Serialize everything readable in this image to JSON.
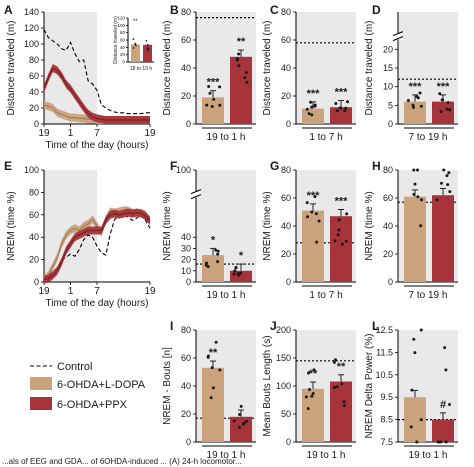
{
  "colors": {
    "ldopa": "#caa27c",
    "ldopa_dark": "#a47c58",
    "ppx": "#a6343a",
    "ppx_dark": "#7a1f25",
    "shade": "#e9e9e9",
    "control": "#000000"
  },
  "legend": {
    "control": "Control",
    "ldopa": "6-OHDA+L-DOPA",
    "ppx": "6-OHDA+PPX"
  },
  "caption_fragment": "...als of EEG and GDA... of 6OHDA-induced ... (A) 24-h locomotor...",
  "chart_data": [
    {
      "panel": "A",
      "type": "line",
      "ylabel": "Distance traveled (m)",
      "xlabel": "Time of the day (hours)",
      "ylim": [
        0,
        140
      ],
      "yticks": [
        0,
        20,
        40,
        60,
        80,
        100,
        120,
        140
      ],
      "xticks": [
        "19",
        "1",
        "7",
        "19"
      ],
      "shaded": "dark phase 19-7",
      "x": [
        19,
        20,
        21,
        22,
        23,
        24,
        25,
        26,
        27,
        28,
        29,
        30,
        31,
        32,
        33,
        34,
        35,
        36,
        37,
        38,
        39,
        40,
        41,
        42,
        43
      ],
      "series": [
        {
          "name": "Control",
          "values": [
            118,
            108,
            104,
            100,
            94,
            92,
            102,
            88,
            78,
            80,
            54,
            50,
            42,
            24,
            20,
            17,
            15,
            14,
            14,
            13,
            13,
            13,
            13,
            14,
            14
          ]
        },
        {
          "name": "6-OHDA+L-DOPA",
          "values": [
            24,
            22,
            20,
            14,
            12,
            10,
            8,
            8,
            7,
            7,
            6,
            6,
            5,
            5,
            5,
            5,
            5,
            5,
            5,
            5,
            5,
            5,
            5,
            5,
            5
          ]
        },
        {
          "name": "6-OHDA+PPX",
          "values": [
            44,
            58,
            70,
            67,
            60,
            50,
            44,
            36,
            28,
            20,
            13,
            9,
            7,
            6,
            5,
            5,
            5,
            5,
            5,
            5,
            5,
            5,
            5,
            5,
            5
          ]
        }
      ],
      "inset": {
        "ylabel": "Distance traveled (m)",
        "xlabel": "18 to 19 h",
        "ylim": [
          0,
          120
        ],
        "yticks": [
          0,
          20,
          40,
          60,
          80,
          100,
          120
        ],
        "values": {
          "6-OHDA+L-DOPA": 48,
          "6-OHDA+PPX": 47
        },
        "annotation": "**"
      }
    },
    {
      "panel": "B",
      "type": "bar",
      "ylabel": "Distance traveled (m)",
      "xlabel": "19 to 1 h",
      "ylim": [
        0,
        80
      ],
      "yticks": [
        0,
        20,
        40,
        60,
        80
      ],
      "control_line": 76,
      "values": {
        "6-OHDA+L-DOPA": 19,
        "6-OHDA+PPX": 48
      },
      "sig": {
        "6-OHDA+L-DOPA": "***",
        "6-OHDA+PPX": "**"
      }
    },
    {
      "panel": "C",
      "type": "bar",
      "ylabel": "Distance traveled (m)",
      "xlabel": "1 to 7 h",
      "ylim": [
        0,
        80
      ],
      "yticks": [
        0,
        20,
        40,
        60,
        80
      ],
      "control_line": 58,
      "values": {
        "6-OHDA+L-DOPA": 11,
        "6-OHDA+PPX": 12
      },
      "sig": {
        "6-OHDA+L-DOPA": "***",
        "6-OHDA+PPX": "***"
      }
    },
    {
      "panel": "D",
      "type": "bar",
      "ylabel": "Distance traveled (m)",
      "xlabel": "7 to 19 h",
      "ylim": [
        0,
        30
      ],
      "yticks": [
        0,
        5,
        10,
        15,
        20
      ],
      "axis_break": true,
      "control_line": 12,
      "values": {
        "6-OHDA+L-DOPA": 6,
        "6-OHDA+PPX": 6
      },
      "sig": {
        "6-OHDA+L-DOPA": "***",
        "6-OHDA+PPX": "***"
      }
    },
    {
      "panel": "E",
      "type": "line",
      "ylabel": "NREM (time %)",
      "xlabel": "Time of the day (hours)",
      "ylim": [
        0,
        100
      ],
      "yticks": [
        0,
        20,
        40,
        60,
        80,
        100
      ],
      "xticks": [
        "19",
        "1",
        "7",
        "19"
      ],
      "shaded": "dark phase 19-7",
      "x": [
        19,
        20,
        21,
        22,
        23,
        24,
        25,
        26,
        27,
        28,
        29,
        30,
        31,
        32,
        33,
        34,
        35,
        36,
        37,
        38,
        39,
        40,
        41,
        42,
        43
      ],
      "series": [
        {
          "name": "Control",
          "values": [
            4,
            6,
            9,
            12,
            20,
            22,
            25,
            23,
            29,
            38,
            42,
            40,
            32,
            26,
            24,
            43,
            56,
            59,
            60,
            58,
            55,
            57,
            60,
            55,
            48
          ]
        },
        {
          "name": "6-OHDA+L-DOPA",
          "values": [
            3,
            6,
            14,
            22,
            34,
            42,
            46,
            48,
            46,
            50,
            52,
            56,
            50,
            44,
            56,
            63,
            62,
            63,
            64,
            64,
            62,
            61,
            62,
            60,
            53
          ]
        },
        {
          "name": "6-OHDA+PPX",
          "values": [
            2,
            3,
            6,
            10,
            18,
            28,
            34,
            40,
            42,
            44,
            46,
            46,
            46,
            46,
            55,
            60,
            61,
            60,
            61,
            62,
            61,
            62,
            61,
            59,
            55
          ]
        }
      ]
    },
    {
      "panel": "F",
      "type": "bar",
      "ylabel": "NREM (time %)",
      "xlabel": "19 to 1 h",
      "ylim": [
        0,
        100
      ],
      "yticks": [
        0,
        10,
        20,
        30,
        40,
        100
      ],
      "axis_break": true,
      "control_line": 16,
      "values": {
        "6-OHDA+L-DOPA": 24,
        "6-OHDA+PPX": 10
      },
      "sig": {
        "6-OHDA+L-DOPA": "*",
        "6-OHDA+PPX": "*"
      }
    },
    {
      "panel": "G",
      "type": "bar",
      "ylabel": "NREM (time %)",
      "xlabel": "1 to 7 h",
      "ylim": [
        0,
        80
      ],
      "yticks": [
        0,
        20,
        40,
        60,
        80
      ],
      "control_line": 28,
      "values": {
        "6-OHDA+L-DOPA": 51,
        "6-OHDA+PPX": 47
      },
      "sig": {
        "6-OHDA+L-DOPA": "***",
        "6-OHDA+PPX": "***"
      }
    },
    {
      "panel": "H",
      "type": "bar",
      "ylabel": "NREM (time %)",
      "xlabel": "7 to 19 h",
      "ylim": [
        0,
        80
      ],
      "yticks": [
        0,
        20,
        40,
        60,
        80
      ],
      "control_line": 57,
      "values": {
        "6-OHDA+L-DOPA": 61,
        "6-OHDA+PPX": 62
      },
      "sig": {
        "6-OHDA+L-DOPA": "",
        "6-OHDA+PPX": ""
      }
    },
    {
      "panel": "I",
      "type": "bar",
      "ylabel": "NREM - Bouts [n]",
      "xlabel": "19 to 1 h",
      "ylim": [
        0,
        80
      ],
      "yticks": [
        0,
        20,
        40,
        60,
        80
      ],
      "control_line": 17,
      "values": {
        "6-OHDA+L-DOPA": 53,
        "6-OHDA+PPX": 18
      },
      "sig": {
        "6-OHDA+L-DOPA": "**",
        "6-OHDA+PPX": ""
      }
    },
    {
      "panel": "J",
      "type": "bar",
      "ylabel": "Mean Bouts Length (s)",
      "xlabel": "19 to 1 h",
      "ylim": [
        0,
        200
      ],
      "yticks": [
        0,
        50,
        100,
        150,
        200
      ],
      "control_line": 145,
      "values": {
        "6-OHDA+L-DOPA": 95,
        "6-OHDA+PPX": 108
      },
      "sig": {
        "6-OHDA+L-DOPA": "**",
        "6-OHDA+PPX": "**"
      }
    },
    {
      "panel": "L",
      "type": "bar",
      "ylabel": "NREM Delta Power (%)",
      "xlabel": "19 to 1 h",
      "ylim": [
        7.5,
        12.5
      ],
      "yticks": [
        7.5,
        8.5,
        9.5,
        10.5,
        11.5,
        12.5
      ],
      "control_line": 8.5,
      "values": {
        "6-OHDA+L-DOPA": 9.5,
        "6-OHDA+PPX": 8.5
      },
      "sig": {
        "6-OHDA+L-DOPA": "",
        "6-OHDA+PPX": "#"
      }
    }
  ]
}
